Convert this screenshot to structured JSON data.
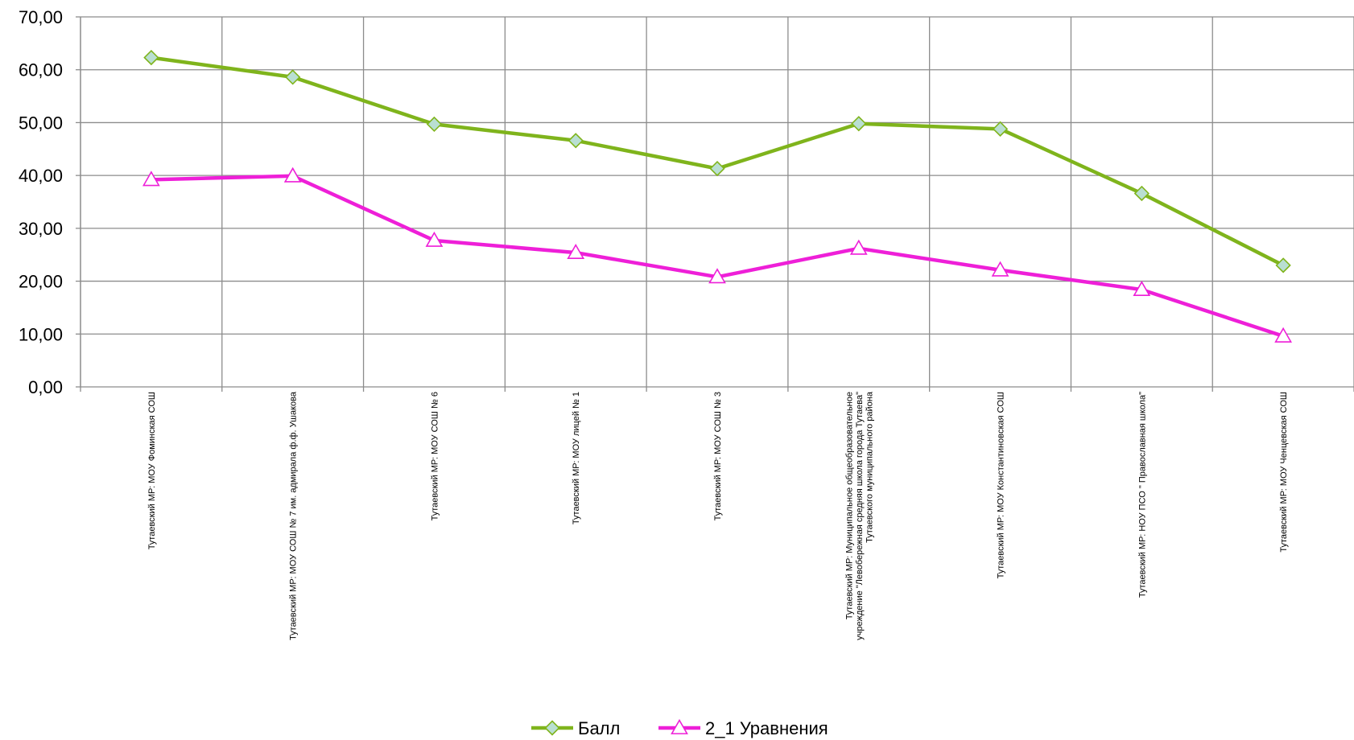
{
  "chart_data": {
    "type": "line",
    "title": "",
    "xlabel": "",
    "ylabel": "",
    "ylim": [
      0,
      70
    ],
    "y_ticks": [
      "0,00",
      "10,00",
      "20,00",
      "30,00",
      "40,00",
      "50,00",
      "60,00",
      "70,00"
    ],
    "grid": true,
    "legend_position": "bottom",
    "categories": [
      [
        "Тутаевский МР: МОУ Фоминская СОШ"
      ],
      [
        "Тутаевский МР: МОУ СОШ № 7 им. адмирала ф.ф. Ушакова"
      ],
      [
        "Тутаевский МР: МОУ СОШ № 6"
      ],
      [
        "Тутаевский МР: МОУ лицей № 1"
      ],
      [
        "Тутаевский МР: МОУ СОШ № 3"
      ],
      [
        "Тутаевский МР: Муниципальное общеобразовательное",
        "учреждение \"Левобережная средняя школа города Тутаева\"",
        "Тутаевского муниципального района"
      ],
      [
        "Тутаевский МР: МОУ Константиновская СОШ"
      ],
      [
        "Тутаевский МР: НОУ ПСО \" Православная школа\""
      ],
      [
        "Тутаевский МР: МОУ Ченцевская СОШ"
      ]
    ],
    "series": [
      {
        "name": "Балл",
        "color": "#7fb41c",
        "marker": "diamond",
        "marker_fill": "#b9dfd2",
        "values": [
          62.3,
          58.6,
          49.7,
          46.6,
          41.3,
          49.8,
          48.8,
          36.6,
          23.0
        ]
      },
      {
        "name": "2_1 Уравнения",
        "color": "#ee1fd8",
        "marker": "triangle",
        "marker_fill": "#ffffff",
        "values": [
          39.2,
          39.9,
          27.7,
          25.4,
          20.8,
          26.2,
          22.1,
          18.4,
          9.6
        ]
      }
    ]
  }
}
